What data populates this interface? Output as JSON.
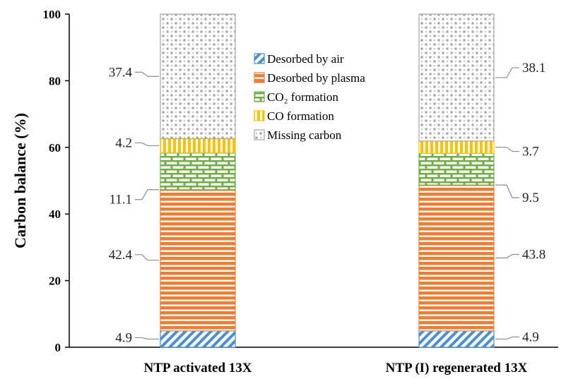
{
  "chart_data": {
    "type": "bar",
    "stacked": true,
    "title": "",
    "xlabel": "",
    "ylabel": "Carbon balance (%)",
    "ylim": [
      0,
      100
    ],
    "yticks": [
      "0",
      "20",
      "40",
      "60",
      "80",
      "100"
    ],
    "categories": [
      "NTP activated 13X",
      "NTP (I) regenerated 13X"
    ],
    "series": [
      {
        "name": "Desorbed by air",
        "values": [
          4.9,
          4.9
        ],
        "color": "#4a8fd4",
        "pattern": "diagonal-stripes"
      },
      {
        "name": "Desorbed by plasma",
        "values": [
          42.4,
          43.8
        ],
        "color": "#ed7d31",
        "pattern": "horizontal-lines"
      },
      {
        "name": "CO₂ formation",
        "values": [
          11.1,
          9.5
        ],
        "color": "#70ad47",
        "pattern": "bricks"
      },
      {
        "name": "CO formation",
        "values": [
          4.2,
          3.7
        ],
        "color": "#ffc000",
        "pattern": "vertical-lines"
      },
      {
        "name": "Missing carbon",
        "values": [
          37.4,
          38.1
        ],
        "color": "#a6a6a6",
        "pattern": "dots"
      }
    ],
    "data_labels": [
      [
        "4.9",
        "42.4",
        "11.1",
        "4.2",
        "37.4"
      ],
      [
        "4.9",
        "43.8",
        "9.5",
        "3.7",
        "38.1"
      ]
    ],
    "grid": false,
    "legend_position": "center"
  }
}
